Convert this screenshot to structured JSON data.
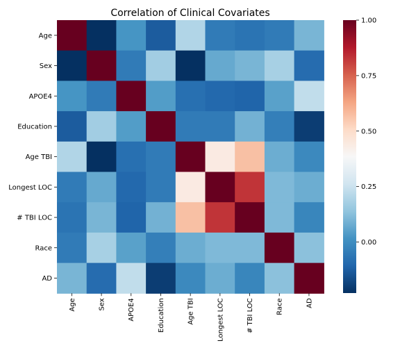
{
  "chart_data": {
    "type": "heatmap",
    "title": "Correlation of Clinical Covariates",
    "xlabel": "",
    "ylabel": "",
    "labels": [
      "Age",
      "Sex",
      "APOE4",
      "Education",
      "Age TBI",
      "Longest LOC",
      "# TBI LOC",
      "Race",
      "AD"
    ],
    "matrix": [
      [
        1.0,
        -0.23,
        0.02,
        -0.13,
        0.2,
        -0.05,
        -0.07,
        -0.05,
        0.1
      ],
      [
        -0.23,
        1.0,
        -0.05,
        0.17,
        -0.23,
        0.07,
        0.1,
        0.18,
        -0.09
      ],
      [
        0.02,
        -0.05,
        1.0,
        0.04,
        -0.08,
        -0.1,
        -0.11,
        0.05,
        0.23
      ],
      [
        -0.13,
        0.17,
        0.04,
        1.0,
        -0.05,
        -0.05,
        0.09,
        -0.04,
        -0.2
      ],
      [
        0.2,
        -0.23,
        -0.08,
        -0.05,
        1.0,
        0.44,
        0.57,
        0.08,
        -0.01
      ],
      [
        -0.05,
        0.07,
        -0.1,
        -0.05,
        0.44,
        1.0,
        0.83,
        0.11,
        0.08
      ],
      [
        -0.07,
        0.1,
        -0.11,
        0.09,
        0.57,
        0.83,
        1.0,
        0.11,
        -0.02
      ],
      [
        -0.05,
        0.18,
        0.05,
        -0.04,
        0.08,
        0.11,
        0.11,
        1.0,
        0.13
      ],
      [
        0.1,
        -0.09,
        0.23,
        -0.2,
        -0.01,
        0.08,
        -0.02,
        0.13,
        1.0
      ]
    ],
    "colormap": "RdBu_r",
    "vmin": -0.23,
    "vmax": 1.0,
    "colorbar_ticks": [
      0.0,
      0.25,
      0.5,
      0.75,
      1.0
    ],
    "colorbar_tick_labels": [
      "0.00",
      "0.25",
      "0.50",
      "0.75",
      "1.00"
    ],
    "grid": false,
    "colorbar_position": "right"
  }
}
